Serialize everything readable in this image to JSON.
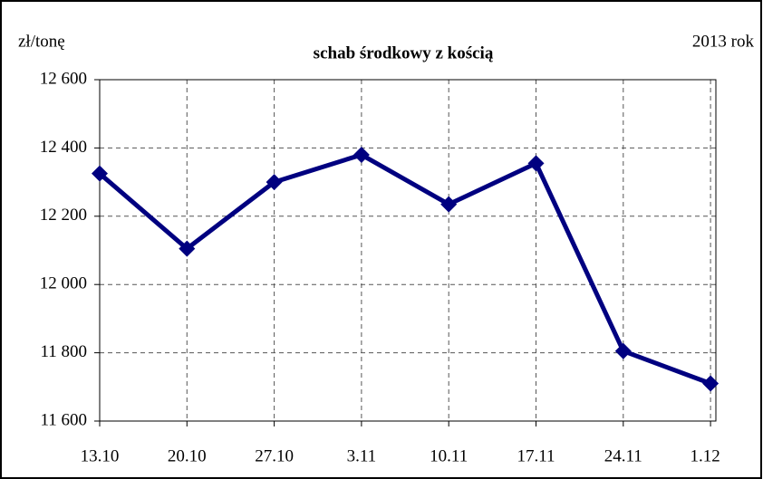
{
  "chart_data": {
    "type": "line",
    "title": "schab środkowy z kością",
    "y_label": "zł/tonę",
    "annotation": "2013 rok",
    "categories": [
      "13.10",
      "20.10",
      "27.10",
      "3.11",
      "10.11",
      "17.11",
      "24.11",
      "1.12"
    ],
    "series": [
      {
        "name": "schab środkowy z kością",
        "color": "#000080",
        "values": [
          12325,
          12105,
          12300,
          12380,
          12235,
          12355,
          11805,
          11710
        ]
      }
    ],
    "ylim": [
      11600,
      12600
    ],
    "yticks": [
      {
        "value": 11600,
        "label": "11 600"
      },
      {
        "value": 11800,
        "label": "11 800"
      },
      {
        "value": 12000,
        "label": "12 000"
      },
      {
        "value": 12200,
        "label": "12 200"
      },
      {
        "value": 12400,
        "label": "12 400"
      },
      {
        "value": 12600,
        "label": "12 600"
      }
    ],
    "grid": true
  }
}
